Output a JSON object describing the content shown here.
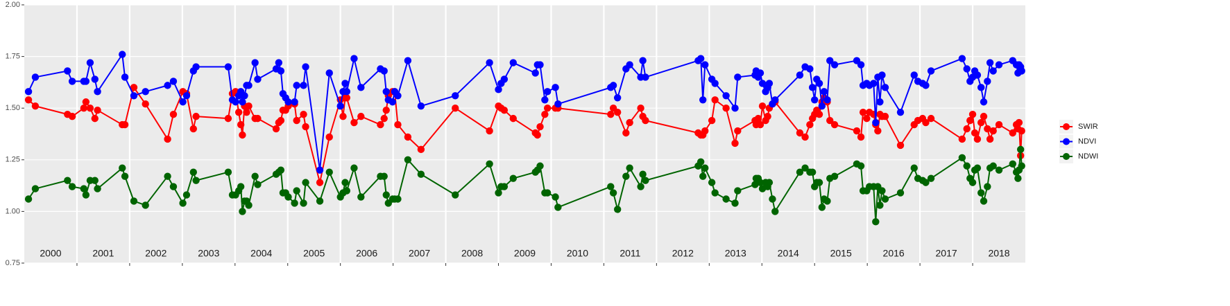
{
  "chart_data": {
    "type": "line",
    "years": [
      "2000",
      "2001",
      "2002",
      "2003",
      "2004",
      "2005",
      "2006",
      "2007",
      "2008",
      "2009",
      "2010",
      "2011",
      "2012",
      "2013",
      "2014",
      "2015",
      "2016",
      "2017",
      "2018"
    ],
    "x": [
      2000.08,
      2000.21,
      2000.82,
      2000.91,
      2001.13,
      2001.17,
      2001.25,
      2001.34,
      2001.39,
      2001.86,
      2001.91,
      2002.08,
      2002.3,
      2002.72,
      2002.83,
      2003.01,
      2003.08,
      2003.21,
      2003.26,
      2003.87,
      2003.95,
      2004.01,
      2004.07,
      2004.11,
      2004.14,
      2004.18,
      2004.22,
      2004.26,
      2004.38,
      2004.43,
      2004.78,
      2004.83,
      2004.87,
      2004.91,
      2004.96,
      2005.01,
      2005.13,
      2005.17,
      2005.3,
      2005.34,
      2005.61,
      2005.79,
      2006.0,
      2006.05,
      2006.09,
      2006.12,
      2006.26,
      2006.39,
      2006.76,
      2006.83,
      2006.87,
      2006.91,
      2006.99,
      2007.03,
      2007.09,
      2007.28,
      2007.53,
      2008.18,
      2008.83,
      2009.0,
      2009.05,
      2009.11,
      2009.28,
      2009.7,
      2009.74,
      2009.79,
      2009.88,
      2009.93,
      2010.08,
      2010.13,
      2011.13,
      2011.18,
      2011.26,
      2011.42,
      2011.49,
      2011.7,
      2011.74,
      2011.79,
      2012.79,
      2012.84,
      2012.88,
      2012.92,
      2013.05,
      2013.11,
      2013.32,
      2013.49,
      2013.54,
      2013.87,
      2013.89,
      2013.93,
      2013.97,
      2014.01,
      2014.07,
      2014.11,
      2014.14,
      2014.2,
      2014.25,
      2014.72,
      2014.82,
      2014.91,
      2014.96,
      2015.0,
      2015.04,
      2015.09,
      2015.14,
      2015.18,
      2015.24,
      2015.29,
      2015.38,
      2015.8,
      2015.88,
      2015.92,
      2015.99,
      2016.04,
      2016.12,
      2016.16,
      2016.2,
      2016.24,
      2016.28,
      2016.34,
      2016.63,
      2016.89,
      2016.96,
      2017.05,
      2017.11,
      2017.21,
      2017.8,
      2017.89,
      2017.95,
      2018.0,
      2018.04,
      2018.09,
      2018.16,
      2018.21,
      2018.28,
      2018.33,
      2018.39,
      2018.5,
      2018.76,
      2018.83,
      2018.86,
      2018.88,
      2018.91,
      2018.93
    ],
    "series": [
      {
        "name": "SWIR",
        "color": "#ff0000",
        "values": [
          1.54,
          1.51,
          1.47,
          1.46,
          1.5,
          1.53,
          1.5,
          1.45,
          1.49,
          1.42,
          1.42,
          1.6,
          1.52,
          1.35,
          1.47,
          1.58,
          1.57,
          1.4,
          1.46,
          1.45,
          1.57,
          1.58,
          1.48,
          1.42,
          1.37,
          1.51,
          1.48,
          1.51,
          1.45,
          1.45,
          1.4,
          1.43,
          1.44,
          1.49,
          1.49,
          1.51,
          1.52,
          1.44,
          1.47,
          1.41,
          1.14,
          1.36,
          1.54,
          1.46,
          1.55,
          1.55,
          1.43,
          1.46,
          1.42,
          1.45,
          1.49,
          1.56,
          1.58,
          1.58,
          1.42,
          1.36,
          1.3,
          1.5,
          1.39,
          1.51,
          1.5,
          1.49,
          1.45,
          1.38,
          1.37,
          1.41,
          1.47,
          1.5,
          1.5,
          1.5,
          1.47,
          1.5,
          1.48,
          1.38,
          1.43,
          1.5,
          1.46,
          1.44,
          1.38,
          1.37,
          1.37,
          1.39,
          1.44,
          1.54,
          1.5,
          1.33,
          1.39,
          1.44,
          1.42,
          1.45,
          1.42,
          1.51,
          1.44,
          1.46,
          1.5,
          1.52,
          1.53,
          1.38,
          1.36,
          1.42,
          1.45,
          1.47,
          1.49,
          1.47,
          1.53,
          1.55,
          1.53,
          1.44,
          1.42,
          1.39,
          1.36,
          1.48,
          1.45,
          1.48,
          1.47,
          1.42,
          1.39,
          1.47,
          1.46,
          1.46,
          1.32,
          1.42,
          1.44,
          1.45,
          1.43,
          1.45,
          1.35,
          1.4,
          1.44,
          1.47,
          1.38,
          1.35,
          1.43,
          1.46,
          1.4,
          1.35,
          1.39,
          1.42,
          1.38,
          1.42,
          1.4,
          1.43,
          1.27,
          1.39
        ]
      },
      {
        "name": "NDVI",
        "color": "#0000ff",
        "values": [
          1.58,
          1.65,
          1.68,
          1.63,
          1.63,
          1.63,
          1.72,
          1.64,
          1.58,
          1.76,
          1.65,
          1.56,
          1.58,
          1.61,
          1.63,
          1.53,
          1.56,
          1.68,
          1.7,
          1.7,
          1.54,
          1.53,
          1.56,
          1.58,
          1.53,
          1.56,
          1.61,
          1.61,
          1.72,
          1.64,
          1.69,
          1.72,
          1.68,
          1.57,
          1.55,
          1.53,
          1.53,
          1.61,
          1.61,
          1.7,
          1.2,
          1.67,
          1.51,
          1.58,
          1.62,
          1.58,
          1.74,
          1.6,
          1.69,
          1.68,
          1.58,
          1.54,
          1.53,
          1.58,
          1.56,
          1.73,
          1.51,
          1.56,
          1.72,
          1.59,
          1.62,
          1.64,
          1.72,
          1.67,
          1.71,
          1.71,
          1.54,
          1.58,
          1.6,
          1.52,
          1.6,
          1.61,
          1.55,
          1.69,
          1.71,
          1.65,
          1.73,
          1.65,
          1.73,
          1.74,
          1.54,
          1.71,
          1.64,
          1.62,
          1.56,
          1.5,
          1.65,
          1.66,
          1.68,
          1.65,
          1.67,
          1.62,
          1.58,
          1.6,
          1.62,
          1.52,
          1.54,
          1.66,
          1.7,
          1.69,
          1.6,
          1.54,
          1.64,
          1.62,
          1.51,
          1.58,
          1.54,
          1.73,
          1.71,
          1.73,
          1.71,
          1.61,
          1.62,
          1.61,
          1.62,
          1.43,
          1.65,
          1.53,
          1.66,
          1.6,
          1.48,
          1.66,
          1.63,
          1.62,
          1.61,
          1.68,
          1.74,
          1.69,
          1.63,
          1.65,
          1.68,
          1.66,
          1.6,
          1.53,
          1.63,
          1.72,
          1.68,
          1.71,
          1.73,
          1.71,
          1.67,
          1.71,
          1.7,
          1.68
        ]
      },
      {
        "name": "NDWI",
        "color": "#006400",
        "values": [
          1.06,
          1.11,
          1.15,
          1.12,
          1.11,
          1.08,
          1.15,
          1.15,
          1.11,
          1.21,
          1.17,
          1.05,
          1.03,
          1.17,
          1.12,
          1.04,
          1.08,
          1.19,
          1.15,
          1.19,
          1.08,
          1.08,
          1.1,
          1.12,
          1.0,
          1.05,
          1.05,
          1.03,
          1.17,
          1.13,
          1.18,
          1.19,
          1.2,
          1.09,
          1.09,
          1.07,
          1.04,
          1.1,
          1.04,
          1.14,
          1.05,
          1.19,
          1.07,
          1.09,
          1.14,
          1.1,
          1.21,
          1.07,
          1.17,
          1.17,
          1.08,
          1.04,
          1.06,
          1.06,
          1.06,
          1.25,
          1.18,
          1.08,
          1.23,
          1.09,
          1.12,
          1.12,
          1.16,
          1.19,
          1.2,
          1.22,
          1.09,
          1.09,
          1.07,
          1.02,
          1.12,
          1.09,
          1.01,
          1.17,
          1.21,
          1.12,
          1.18,
          1.15,
          1.22,
          1.24,
          1.17,
          1.21,
          1.14,
          1.09,
          1.06,
          1.04,
          1.1,
          1.13,
          1.16,
          1.16,
          1.14,
          1.11,
          1.14,
          1.12,
          1.14,
          1.06,
          1.0,
          1.19,
          1.21,
          1.19,
          1.19,
          1.12,
          1.14,
          1.14,
          1.02,
          1.06,
          1.05,
          1.16,
          1.17,
          1.23,
          1.22,
          1.1,
          1.1,
          1.12,
          1.12,
          0.95,
          1.12,
          1.03,
          1.1,
          1.06,
          1.09,
          1.21,
          1.16,
          1.15,
          1.14,
          1.16,
          1.26,
          1.22,
          1.16,
          1.14,
          1.2,
          1.21,
          1.09,
          1.05,
          1.12,
          1.21,
          1.22,
          1.2,
          1.23,
          1.19,
          1.16,
          1.2,
          1.3,
          1.22
        ]
      }
    ],
    "xlim": [
      2000,
      2019
    ],
    "ylim": [
      0.75,
      2
    ],
    "yticks": [
      0.75,
      {
        "value": 1,
        "label": "1.00"
      },
      1.25,
      {
        "value": 1.5,
        "label": "1.50"
      },
      1.75,
      {
        "value": 2,
        "label": "2.00"
      }
    ],
    "grid": true,
    "legend": "right"
  }
}
